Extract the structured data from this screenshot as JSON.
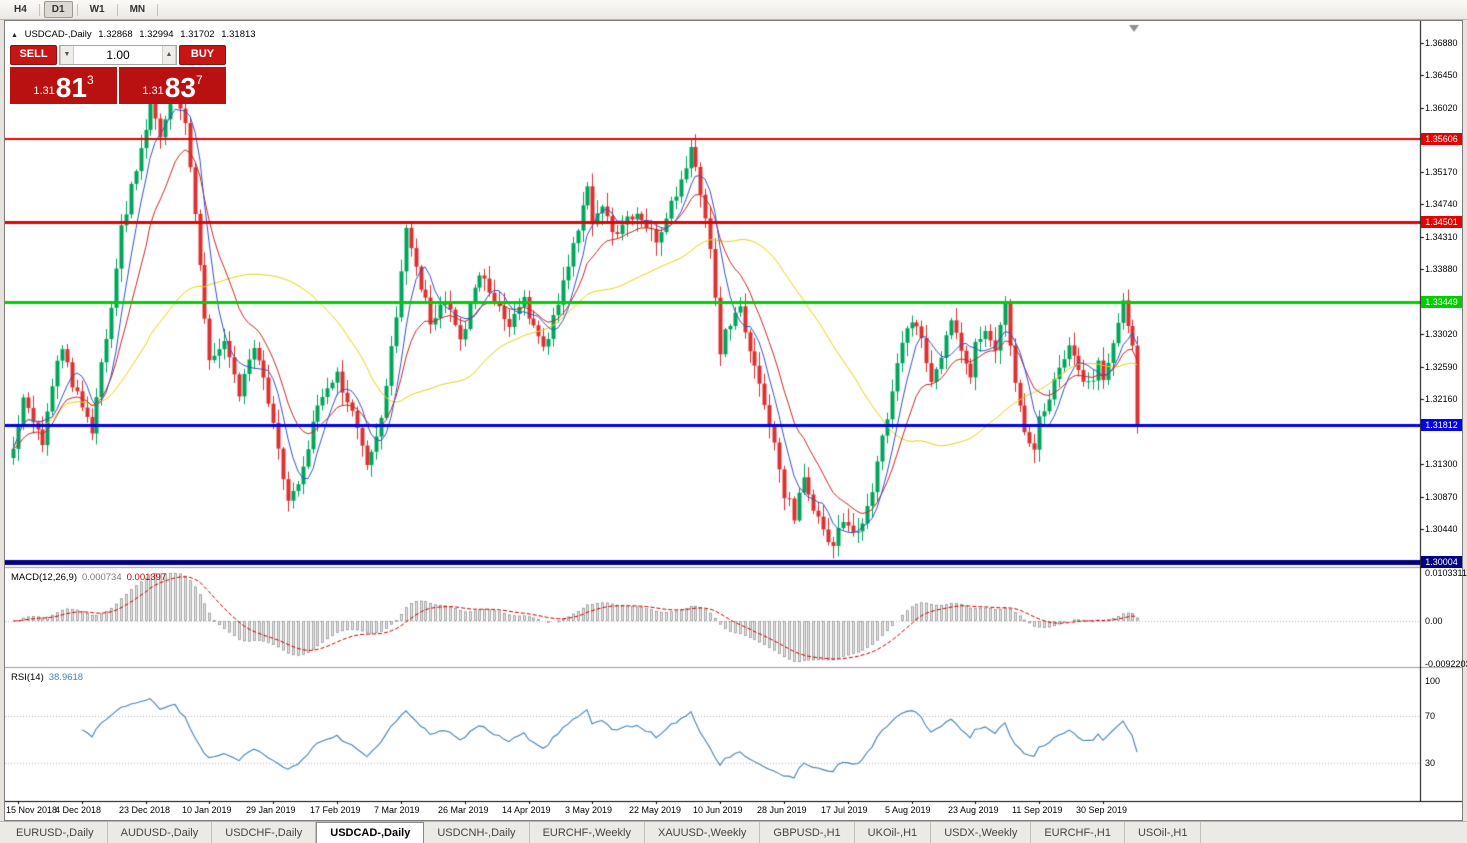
{
  "icons": {
    "one_click_collapse": "▲",
    "volume_down": "▼",
    "volume_up": "▲"
  },
  "toolbar": {
    "timeframes": [
      {
        "label": "H4",
        "active": false
      },
      {
        "label": "D1",
        "active": true
      },
      {
        "label": "W1",
        "active": false
      },
      {
        "label": "MN",
        "active": false
      }
    ]
  },
  "chart": {
    "header": {
      "title": "USDCAD-,Daily",
      "open": "1.32868",
      "high": "1.32994",
      "low": "1.31702",
      "close": "1.31813"
    }
  },
  "trade": {
    "sell_label": "SELL",
    "buy_label": "BUY",
    "volume": "1.00",
    "bid": {
      "big_figure": "1.31",
      "pips": "81",
      "pipette": "3"
    },
    "ask": {
      "big_figure": "1.31",
      "pips": "83",
      "pipette": "7"
    }
  },
  "indicators": {
    "macd": {
      "label": "MACD(12,26,9)",
      "main_value": "0.000734",
      "signal_value": "0.001397",
      "axis": [
        "0.0103311",
        "0.00",
        "-0.0092203"
      ]
    },
    "rsi": {
      "label": "RSI(14)",
      "value": "38.9618",
      "axis": [
        "100",
        "70",
        "30"
      ]
    }
  },
  "price_axis": {
    "ticks": [
      "1.36880",
      "1.36450",
      "1.36020",
      "1.35170",
      "1.34740",
      "1.34310",
      "1.33880",
      "1.33020",
      "1.32590",
      "1.32160",
      "1.31300",
      "1.30870",
      "1.30440"
    ]
  },
  "time_axis": {
    "labels": [
      {
        "bar": 1,
        "text": "15 Nov 2018"
      },
      {
        "bar": 14,
        "text": "4 Dec 2018"
      },
      {
        "bar": 27,
        "text": "23 Dec 2018"
      },
      {
        "bar": 40,
        "text": "10 Jan 2019"
      },
      {
        "bar": 53,
        "text": "29 Jan 2019"
      },
      {
        "bar": 66,
        "text": "17 Feb 2019"
      },
      {
        "bar": 79,
        "text": "7 Mar 2019"
      },
      {
        "bar": 92,
        "text": "26 Mar 2019"
      },
      {
        "bar": 105,
        "text": "14 Apr 2019"
      },
      {
        "bar": 118,
        "text": "3 May 2019"
      },
      {
        "bar": 131,
        "text": "22 May 2019"
      },
      {
        "bar": 144,
        "text": "10 Jun 2019"
      },
      {
        "bar": 157,
        "text": "28 Jun 2019"
      },
      {
        "bar": 170,
        "text": "17 Jul 2019"
      },
      {
        "bar": 183,
        "text": "5 Aug 2019"
      },
      {
        "bar": 196,
        "text": "23 Aug 2019"
      },
      {
        "bar": 209,
        "text": "11 Sep 2019"
      },
      {
        "bar": 222,
        "text": "30 Sep 2019"
      }
    ]
  },
  "hlines": [
    {
      "price": 1.35606,
      "label": "1.35606",
      "color": "#e60000",
      "width": 2
    },
    {
      "price": 1.34501,
      "label": "1.34501",
      "color": "#e60000",
      "width": 3
    },
    {
      "price": 1.33449,
      "label": "1.33449",
      "color": "#00ce00",
      "width": 3
    },
    {
      "price": 1.31812,
      "label": "1.31812",
      "color": "#0000ee",
      "width": 3
    },
    {
      "price": 1.30004,
      "label": "1.30004",
      "color": "#000080",
      "width": 5
    }
  ],
  "tabs": {
    "items": [
      {
        "label": "EURUSD-,Daily",
        "active": false
      },
      {
        "label": "AUDUSD-,Daily",
        "active": false
      },
      {
        "label": "USDCHF-,Daily",
        "active": false
      },
      {
        "label": "USDCAD-,Daily",
        "active": true
      },
      {
        "label": "USDCNH-,Daily",
        "active": false
      },
      {
        "label": "EURCHF-,Weekly",
        "active": false
      },
      {
        "label": "XAUUSD-,Weekly",
        "active": false
      },
      {
        "label": "GBPUSD-,H1",
        "active": false
      },
      {
        "label": "UKOil-,H1",
        "active": false
      },
      {
        "label": "USDX-,Weekly",
        "active": false
      },
      {
        "label": "EURCHF-,H1",
        "active": false
      },
      {
        "label": "USOil-,H1",
        "active": false
      }
    ]
  },
  "chart_data": {
    "type": "candlestick",
    "symbol": "USDCAD",
    "timeframe": "Daily",
    "bars_total": 230,
    "noise_seed": 77,
    "price_range": {
      "top": 1.371,
      "bottom": 1.2995
    },
    "last_bar_ohlc": {
      "open": 1.32868,
      "high": 1.32994,
      "low": 1.31702,
      "close": 1.31813
    },
    "up_color": "#00a55c",
    "down_color": "#dd3030",
    "moving_averages": [
      {
        "period": 40,
        "type": "sma",
        "color": "#ecd012"
      },
      {
        "period": 13,
        "type": "ema",
        "color": "#c82828"
      },
      {
        "period": 6,
        "type": "sma",
        "color": "#3352c8"
      }
    ],
    "macd_axis": {
      "top": 0.0103311,
      "zero": 0.0,
      "bottom": -0.0092203
    },
    "rsi_levels": [
      70,
      30
    ],
    "anchor_closes": [
      [
        0,
        1.315
      ],
      [
        2,
        1.3222
      ],
      [
        4,
        1.3185
      ],
      [
        6,
        1.316
      ],
      [
        8,
        1.3238
      ],
      [
        10,
        1.329
      ],
      [
        12,
        1.3232
      ],
      [
        14,
        1.321
      ],
      [
        16,
        1.3172
      ],
      [
        18,
        1.3265
      ],
      [
        20,
        1.333
      ],
      [
        22,
        1.344
      ],
      [
        25,
        1.3525
      ],
      [
        28,
        1.3605
      ],
      [
        30,
        1.356
      ],
      [
        33,
        1.3635
      ],
      [
        35,
        1.358
      ],
      [
        37,
        1.346
      ],
      [
        40,
        1.3262
      ],
      [
        43,
        1.329
      ],
      [
        46,
        1.3226
      ],
      [
        49,
        1.3288
      ],
      [
        52,
        1.3212
      ],
      [
        53,
        1.318
      ],
      [
        56,
        1.3085
      ],
      [
        58,
        1.3096
      ],
      [
        60,
        1.3155
      ],
      [
        63,
        1.3225
      ],
      [
        66,
        1.3245
      ],
      [
        69,
        1.3196
      ],
      [
        72,
        1.3128
      ],
      [
        75,
        1.3185
      ],
      [
        78,
        1.333
      ],
      [
        80,
        1.344
      ],
      [
        82,
        1.339
      ],
      [
        85,
        1.3322
      ],
      [
        88,
        1.3345
      ],
      [
        91,
        1.3295
      ],
      [
        92,
        1.3312
      ],
      [
        95,
        1.338
      ],
      [
        98,
        1.3345
      ],
      [
        101,
        1.3312
      ],
      [
        104,
        1.3358
      ],
      [
        105,
        1.3322
      ],
      [
        108,
        1.328
      ],
      [
        111,
        1.334
      ],
      [
        114,
        1.342
      ],
      [
        117,
        1.3495
      ],
      [
        118,
        1.3452
      ],
      [
        120,
        1.347
      ],
      [
        123,
        1.3432
      ],
      [
        126,
        1.346
      ],
      [
        129,
        1.3442
      ],
      [
        131,
        1.343
      ],
      [
        133,
        1.3458
      ],
      [
        135,
        1.3488
      ],
      [
        137,
        1.3528
      ],
      [
        138,
        1.3552
      ],
      [
        140,
        1.348
      ],
      [
        142,
        1.342
      ],
      [
        144,
        1.3282
      ],
      [
        146,
        1.332
      ],
      [
        148,
        1.3332
      ],
      [
        150,
        1.328
      ],
      [
        152,
        1.3232
      ],
      [
        154,
        1.318
      ],
      [
        156,
        1.313
      ],
      [
        157,
        1.3092
      ],
      [
        159,
        1.3062
      ],
      [
        161,
        1.311
      ],
      [
        163,
        1.3072
      ],
      [
        165,
        1.3042
      ],
      [
        167,
        1.3026
      ],
      [
        169,
        1.3058
      ],
      [
        171,
        1.3036
      ],
      [
        173,
        1.305
      ],
      [
        175,
        1.31
      ],
      [
        177,
        1.3162
      ],
      [
        179,
        1.323
      ],
      [
        181,
        1.329
      ],
      [
        183,
        1.332
      ],
      [
        185,
        1.3292
      ],
      [
        187,
        1.3242
      ],
      [
        189,
        1.327
      ],
      [
        191,
        1.332
      ],
      [
        193,
        1.3282
      ],
      [
        195,
        1.3252
      ],
      [
        196,
        1.329
      ],
      [
        198,
        1.3312
      ],
      [
        200,
        1.3286
      ],
      [
        202,
        1.3336
      ],
      [
        204,
        1.3242
      ],
      [
        206,
        1.3172
      ],
      [
        208,
        1.3146
      ],
      [
        209,
        1.3186
      ],
      [
        211,
        1.322
      ],
      [
        213,
        1.325
      ],
      [
        215,
        1.328
      ],
      [
        217,
        1.3252
      ],
      [
        219,
        1.3232
      ],
      [
        221,
        1.3262
      ],
      [
        222,
        1.3246
      ],
      [
        224,
        1.3292
      ],
      [
        226,
        1.3342
      ],
      [
        227,
        1.3312
      ],
      [
        228,
        1.32868
      ],
      [
        229,
        1.31813
      ]
    ]
  }
}
